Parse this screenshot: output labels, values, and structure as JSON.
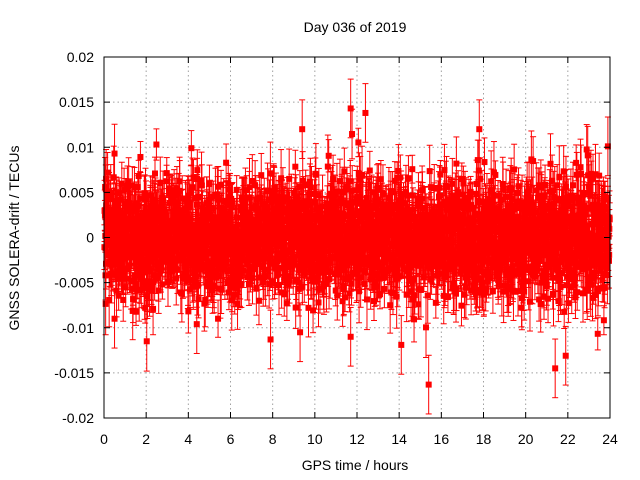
{
  "chart_data": {
    "type": "scatter",
    "title": "Day 036 of 2019",
    "xlabel": "GPS time / hours",
    "ylabel": "GNSS SOLERA-drift / TECUs",
    "xlim": [
      0,
      24
    ],
    "ylim": [
      -0.02,
      0.02
    ],
    "x_ticks": [
      "0",
      "2",
      "4",
      "6",
      "8",
      "10",
      "12",
      "14",
      "16",
      "18",
      "20",
      "22",
      "24"
    ],
    "y_ticks": [
      "0.02",
      "0.015",
      "0.01",
      "0.005",
      "0",
      "-0.005",
      "-0.01",
      "-0.015",
      "-0.02"
    ],
    "grid": true,
    "legend": "none",
    "series": [
      {
        "color": "#ff0000",
        "marker": "square",
        "error_bars": true,
        "sample_interval_hours": 0.00833,
        "typical_error": 0.0025,
        "typical_abs_value": 0.005,
        "notable_points": [
          {
            "x": 0.1,
            "y": 0.0065
          },
          {
            "x": 0.5,
            "y": 0.0093
          },
          {
            "x": 0.5,
            "y": -0.009
          },
          {
            "x": 4.4,
            "y": -0.0096
          },
          {
            "x": 7.9,
            "y": -0.0113
          },
          {
            "x": 9.4,
            "y": 0.012
          },
          {
            "x": 9.3,
            "y": -0.0105
          },
          {
            "x": 11.7,
            "y": 0.0143
          },
          {
            "x": 11.7,
            "y": -0.011
          },
          {
            "x": 12.4,
            "y": 0.0138
          },
          {
            "x": 14.1,
            "y": -0.0119
          },
          {
            "x": 15.4,
            "y": -0.0163
          },
          {
            "x": 17.8,
            "y": 0.012
          },
          {
            "x": 21.4,
            "y": -0.0145
          },
          {
            "x": 21.9,
            "y": -0.0131
          },
          {
            "x": 23.9,
            "y": 0.0101
          }
        ]
      }
    ]
  }
}
